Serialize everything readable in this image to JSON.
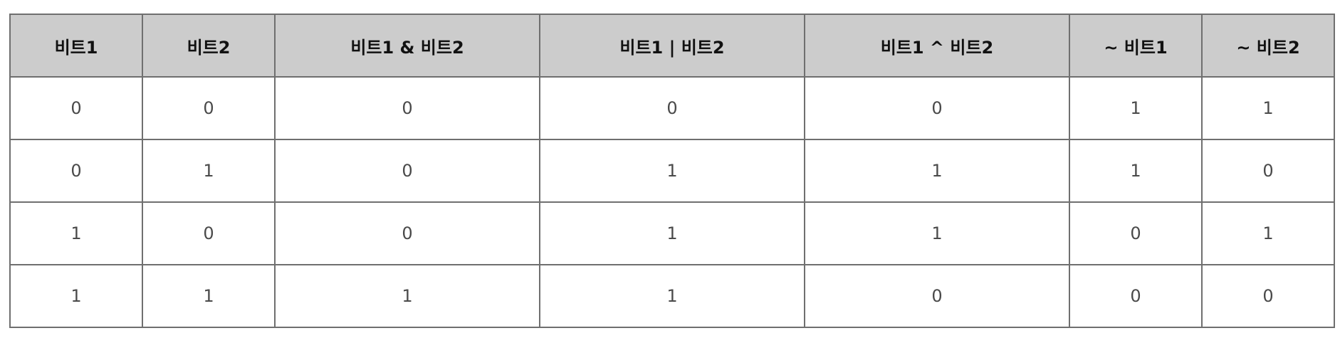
{
  "table": {
    "headers": [
      "비트1",
      "비트2",
      "비트1 & 비트2",
      "비트1 | 비트2",
      "비트1 ^ 비트2",
      "~ 비트1",
      "~ 비트2"
    ],
    "rows": [
      [
        "0",
        "0",
        "0",
        "0",
        "0",
        "1",
        "1"
      ],
      [
        "0",
        "1",
        "0",
        "1",
        "1",
        "1",
        "0"
      ],
      [
        "1",
        "0",
        "0",
        "1",
        "1",
        "0",
        "1"
      ],
      [
        "1",
        "1",
        "1",
        "1",
        "0",
        "0",
        "0"
      ]
    ]
  }
}
